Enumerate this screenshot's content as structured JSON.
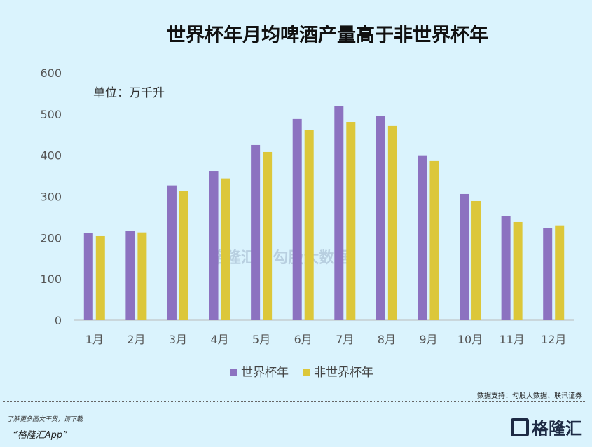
{
  "chart_data": {
    "type": "bar",
    "title": "世界杯年月均啤酒产量高于非世界杯年",
    "unit_label": "单位：万千升",
    "categories": [
      "1月",
      "2月",
      "3月",
      "4月",
      "5月",
      "6月",
      "7月",
      "8月",
      "9月",
      "10月",
      "11月",
      "12月"
    ],
    "series": [
      {
        "name": "世界杯年",
        "color": "#8c72c0",
        "values": [
          211,
          216,
          327,
          362,
          425,
          488,
          519,
          495,
          400,
          306,
          253,
          223
        ]
      },
      {
        "name": "非世界杯年",
        "color": "#dcc73a",
        "values": [
          204,
          213,
          313,
          344,
          408,
          461,
          481,
          471,
          386,
          289,
          238,
          230
        ]
      }
    ],
    "ylim": [
      0,
      600
    ],
    "yticks": [
      0,
      100,
      200,
      300,
      400,
      500,
      600
    ],
    "grid": false,
    "legend": "bottom"
  },
  "watermark": "格隆汇 | 勾股大数据",
  "footer": {
    "source": "数据支持：勾股大数据、联讯证券",
    "promo_line1": "了解更多图文干货，请下载",
    "promo_line2": "“格隆汇App”",
    "logo_text": "格隆汇"
  }
}
